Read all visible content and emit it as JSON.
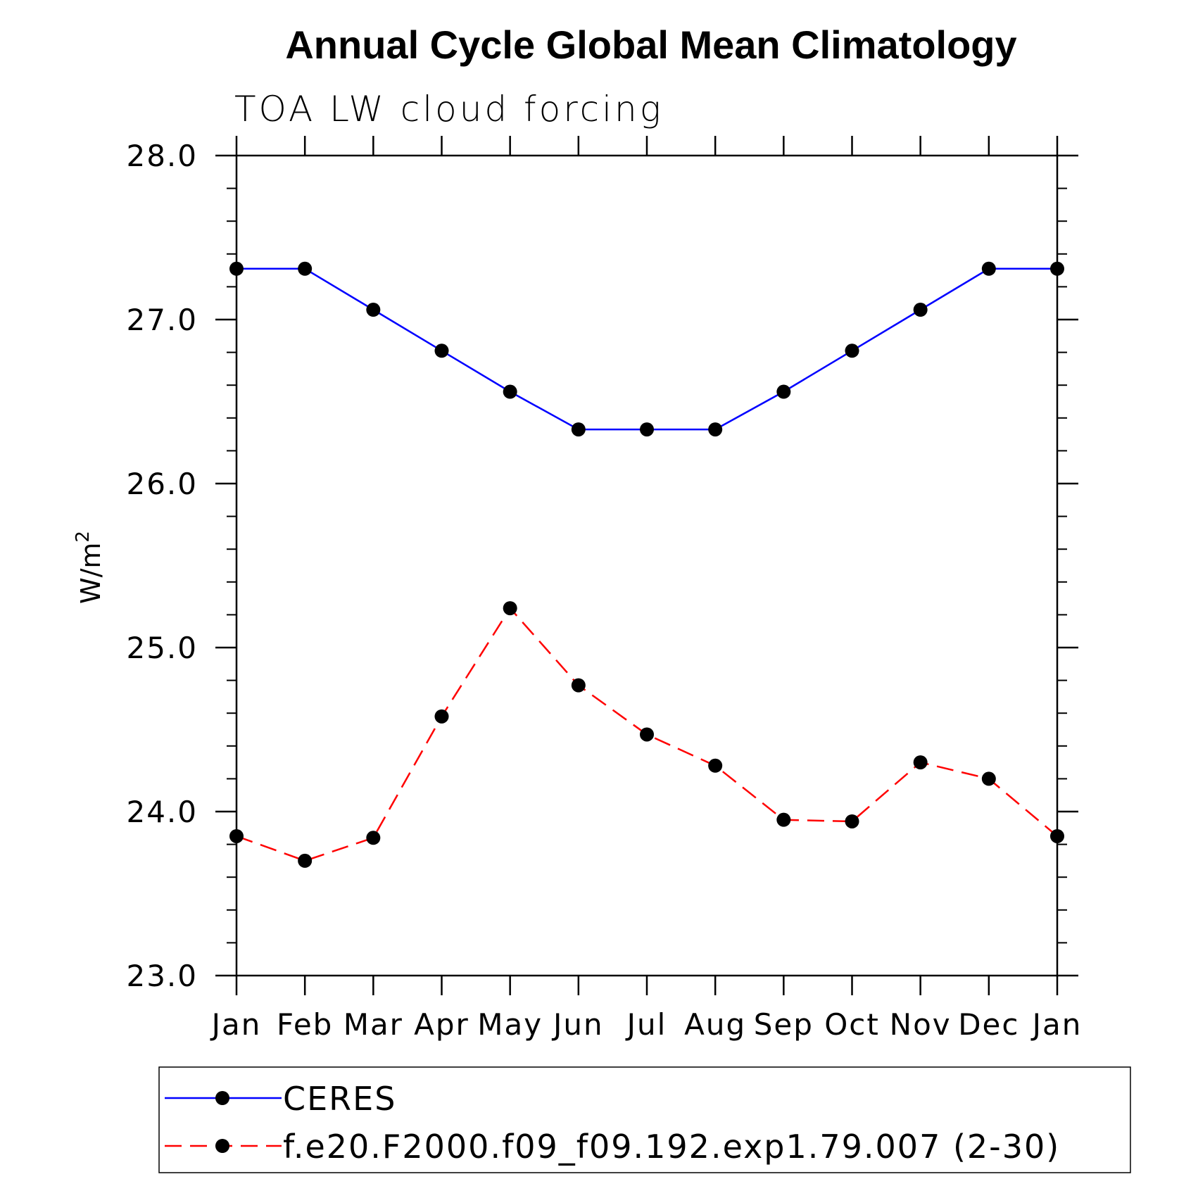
{
  "chart_data": {
    "type": "line",
    "title": "Annual Cycle Global Mean Climatology",
    "subtitle": "TOA LW cloud forcing",
    "ylabel": "W/m",
    "ylabel_superscript": "2",
    "xlabel": "",
    "ylim": [
      23.0,
      28.0
    ],
    "y_ticks": [
      "23.0",
      "24.0",
      "25.0",
      "26.0",
      "27.0",
      "28.0"
    ],
    "categories": [
      "Jan",
      "Feb",
      "Mar",
      "Apr",
      "May",
      "Jun",
      "Jul",
      "Aug",
      "Sep",
      "Oct",
      "Nov",
      "Dec",
      "Jan"
    ],
    "grid": false,
    "legend_position": "bottom",
    "series": [
      {
        "name": "CERES",
        "color": "#0000ff",
        "style": "solid",
        "marker": "filled-circle",
        "values": [
          27.31,
          27.31,
          27.06,
          26.81,
          26.56,
          26.33,
          26.33,
          26.33,
          26.56,
          26.81,
          27.06,
          27.31,
          27.31
        ]
      },
      {
        "name": "f.e20.F2000.f09_f09.192.exp1.79.007 (2-30)",
        "color": "#ff0000",
        "style": "dashed",
        "marker": "filled-circle",
        "values": [
          23.85,
          23.7,
          23.84,
          24.58,
          25.24,
          24.77,
          24.47,
          24.28,
          23.95,
          23.94,
          24.3,
          24.2,
          23.85
        ]
      }
    ]
  }
}
